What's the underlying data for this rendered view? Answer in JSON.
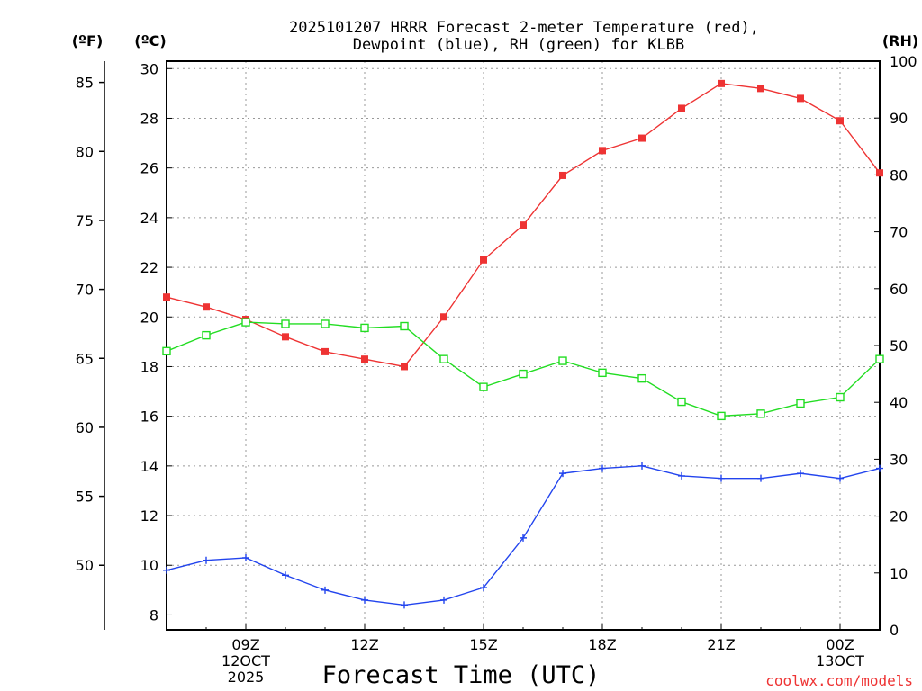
{
  "chart_data": {
    "type": "line",
    "title_line1": "2025101207 HRRR Forecast 2-meter Temperature (red),",
    "title_line2": "Dewpoint (blue), RH (green) for KLBB",
    "xlabel": "Forecast Time (UTC)",
    "watermark": "coolwx.com/models",
    "unit_labels": {
      "fahrenheit": "(ºF)",
      "celsius": "(ºC)",
      "rh": "(RH)"
    },
    "x_hours": [
      7,
      8,
      9,
      10,
      11,
      12,
      13,
      14,
      15,
      16,
      17,
      18,
      19,
      20,
      21,
      22,
      23,
      24,
      25
    ],
    "xlim": [
      7,
      25
    ],
    "x_ticks": [
      {
        "hour": 9,
        "lines": [
          "09Z",
          "12OCT",
          "2025"
        ]
      },
      {
        "hour": 12,
        "lines": [
          "12Z"
        ]
      },
      {
        "hour": 15,
        "lines": [
          "15Z"
        ]
      },
      {
        "hour": 18,
        "lines": [
          "18Z"
        ]
      },
      {
        "hour": 21,
        "lines": [
          "21Z"
        ]
      },
      {
        "hour": 24,
        "lines": [
          "00Z",
          "13OCT"
        ]
      }
    ],
    "celsius_axis": {
      "ylim": [
        7.4,
        30.3
      ],
      "ticks": [
        8,
        10,
        12,
        14,
        16,
        18,
        20,
        22,
        24,
        26,
        28,
        30
      ]
    },
    "fahrenheit_axis": {
      "ticks": [
        50,
        55,
        60,
        65,
        70,
        75,
        80,
        85
      ]
    },
    "rh_axis": {
      "ylim": [
        0,
        100
      ],
      "ticks": [
        0,
        10,
        20,
        30,
        40,
        50,
        60,
        70,
        80,
        90,
        100
      ]
    },
    "series": [
      {
        "name": "Temperature",
        "axis": "celsius",
        "color": "#ee3333",
        "marker": "filled-square",
        "values": [
          20.8,
          20.4,
          19.9,
          19.2,
          18.6,
          18.3,
          18.0,
          20.0,
          22.3,
          23.7,
          25.7,
          26.7,
          27.2,
          28.4,
          29.4,
          29.2,
          28.8,
          27.9,
          25.8
        ]
      },
      {
        "name": "Dewpoint",
        "axis": "celsius",
        "color": "#2244ee",
        "marker": "plus",
        "values": [
          9.8,
          10.2,
          10.3,
          9.6,
          9.0,
          8.6,
          8.4,
          8.6,
          9.1,
          11.1,
          13.7,
          13.9,
          14.0,
          13.6,
          13.5,
          13.5,
          13.7,
          13.5,
          13.9
        ]
      },
      {
        "name": "RH",
        "axis": "rh",
        "color": "#22dd22",
        "marker": "open-square",
        "values": [
          49.0,
          51.8,
          54.1,
          53.8,
          53.8,
          53.1,
          53.4,
          47.6,
          42.7,
          45.0,
          47.3,
          45.2,
          44.2,
          40.1,
          37.6,
          38.0,
          39.8,
          40.9,
          47.6
        ]
      }
    ]
  }
}
